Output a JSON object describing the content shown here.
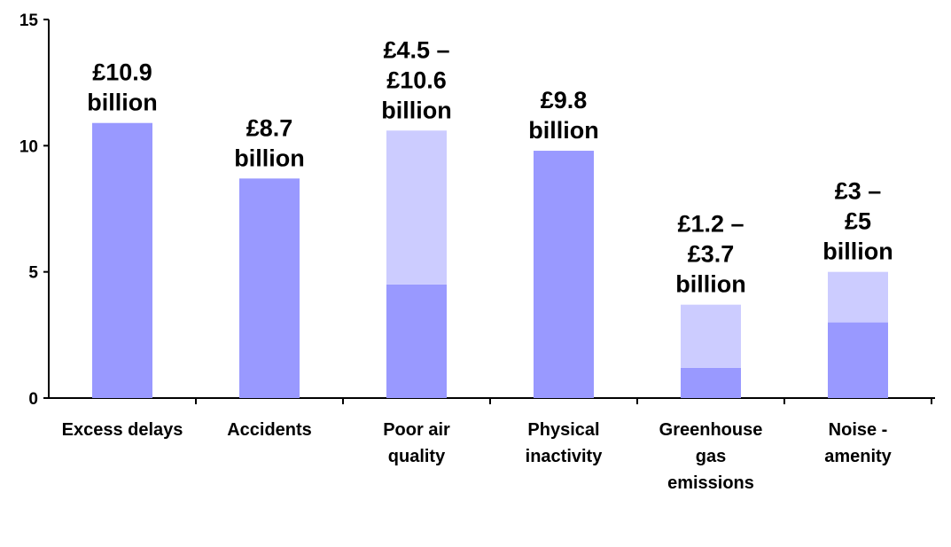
{
  "chart_data": {
    "type": "bar",
    "stacked": true,
    "categories": [
      [
        "Excess delays"
      ],
      [
        "Accidents"
      ],
      [
        "Poor air",
        "quality"
      ],
      [
        "Physical",
        "inactivity"
      ],
      [
        "Greenhouse",
        "gas",
        "emissions"
      ],
      [
        "Noise -",
        "amenity"
      ]
    ],
    "series": [
      {
        "values": [
          10.9,
          8.7,
          4.5,
          9.8,
          1.2,
          3
        ],
        "color": "#9999ff"
      },
      {
        "values": [
          0,
          0,
          6.1,
          0,
          2.5,
          2
        ],
        "color": "#ccccff"
      }
    ],
    "data_labels": [
      [
        "£10.9",
        "billion"
      ],
      [
        "£8.7",
        "billion"
      ],
      [
        "£4.5 –",
        "£10.6",
        "billion"
      ],
      [
        "£9.8",
        "billion"
      ],
      [
        "£1.2 –",
        "£3.7",
        "billion"
      ],
      [
        "£3 –",
        "£5",
        "billion"
      ]
    ],
    "ylim": [
      0,
      15
    ],
    "yticks": [
      0,
      5,
      10,
      15
    ],
    "grid": false,
    "legend": false
  }
}
